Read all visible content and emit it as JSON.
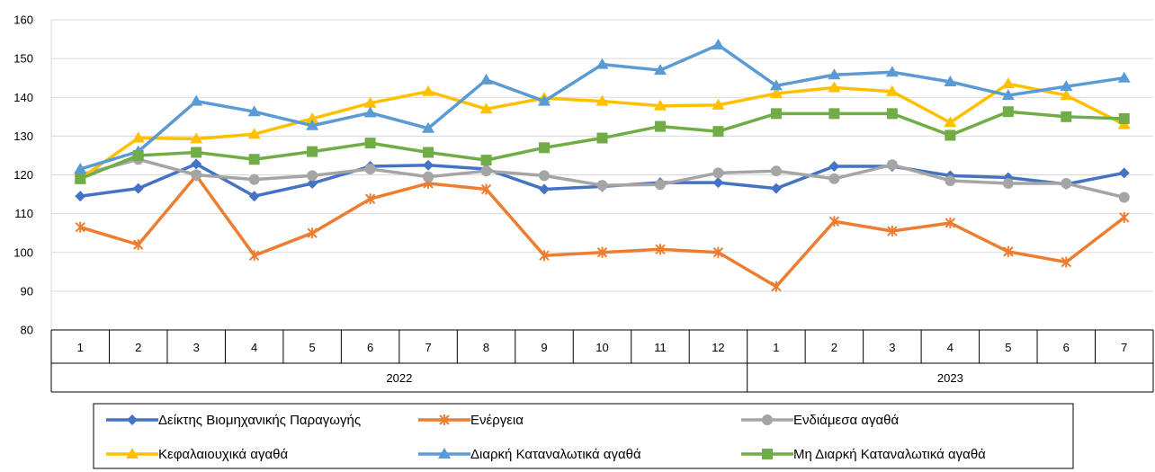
{
  "chart_data": {
    "type": "line",
    "title": "",
    "xlabel": "",
    "ylabel": "",
    "ylim": [
      80,
      160
    ],
    "y_ticks": [
      80,
      90,
      100,
      110,
      120,
      130,
      140,
      150,
      160
    ],
    "grid": "horizontal",
    "legend_position": "bottom",
    "categories": [
      "1",
      "2",
      "3",
      "4",
      "5",
      "6",
      "7",
      "8",
      "9",
      "10",
      "11",
      "12",
      "1",
      "2",
      "3",
      "4",
      "5",
      "6",
      "7"
    ],
    "year_groups": [
      {
        "label": "2022",
        "count": 12
      },
      {
        "label": "2023",
        "count": 7
      }
    ],
    "series": [
      {
        "name": "Δείκτης Βιομηχανικής Παραγωγής",
        "color": "#4472C4",
        "marker": "diamond",
        "values": [
          114.5,
          116.5,
          122.8,
          114.5,
          117.8,
          122.2,
          122.5,
          121.5,
          116.3,
          117.0,
          118.0,
          118.0,
          116.5,
          122.2,
          122.2,
          119.8,
          119.3,
          117.6,
          120.5
        ]
      },
      {
        "name": "Ενέργεια",
        "color": "#ED7D31",
        "marker": "asterisk",
        "values": [
          106.5,
          102.0,
          119.8,
          99.2,
          105.0,
          113.8,
          117.8,
          116.3,
          99.2,
          100.0,
          100.8,
          100.0,
          91.2,
          108.0,
          105.5,
          107.6,
          100.2,
          97.5,
          109.0
        ]
      },
      {
        "name": "Ενδιάμεσα αγαθά",
        "color": "#A5A5A5",
        "marker": "circle",
        "values": [
          120.0,
          124.0,
          120.0,
          118.8,
          119.8,
          121.5,
          119.5,
          121.0,
          119.8,
          117.3,
          117.5,
          120.5,
          121.0,
          119.0,
          122.6,
          118.5,
          117.8,
          117.8,
          114.2
        ]
      },
      {
        "name": "Κεφαλαιουχικά αγαθά",
        "color": "#FFC000",
        "marker": "triangle",
        "values": [
          119.0,
          129.5,
          129.3,
          130.5,
          134.5,
          138.5,
          141.5,
          137.0,
          139.8,
          139.0,
          137.8,
          138.0,
          141.0,
          142.5,
          141.5,
          133.5,
          143.5,
          140.5,
          133.0
        ]
      },
      {
        "name": "Διαρκή Καταναλωτικά αγαθά",
        "color": "#5B9BD5",
        "marker": "triangle",
        "values": [
          121.5,
          126.0,
          139.0,
          136.3,
          132.7,
          136.0,
          132.0,
          144.5,
          139.0,
          148.5,
          147.0,
          153.5,
          143.0,
          145.8,
          146.5,
          144.0,
          140.5,
          142.8,
          145.0
        ]
      },
      {
        "name": "Μη Διαρκή Καταναλωτικά αγαθά",
        "color": "#70AD47",
        "marker": "square",
        "values": [
          119.0,
          125.0,
          125.8,
          124.0,
          126.0,
          128.2,
          125.8,
          123.8,
          127.0,
          129.5,
          132.5,
          131.2,
          135.8,
          135.8,
          135.8,
          130.2,
          136.3,
          135.0,
          134.5
        ]
      }
    ]
  }
}
